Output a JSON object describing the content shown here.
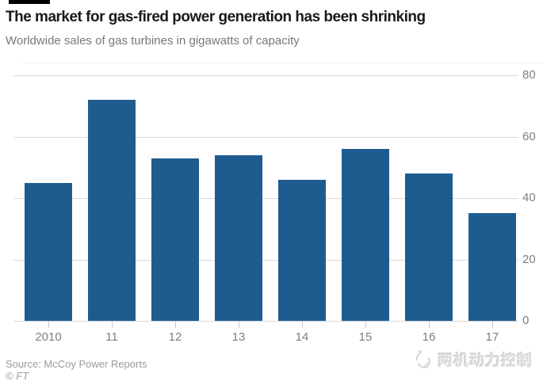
{
  "chart_data": {
    "type": "bar",
    "title": "The market for gas-fired power generation has been shrinking",
    "subtitle": "Worldwide sales of gas turbines in gigawatts of capacity",
    "categories": [
      "2010",
      "11",
      "12",
      "13",
      "14",
      "15",
      "16",
      "17"
    ],
    "values": [
      45,
      72,
      53,
      54,
      46,
      56,
      48,
      35
    ],
    "xlabel": "",
    "ylabel": "gigawatts of capacity",
    "ylim": [
      0,
      80
    ],
    "yticks": [
      0,
      20,
      40,
      60,
      80
    ],
    "ytick_side": "right",
    "grid": true,
    "legend": false
  },
  "footer": {
    "source": "Source: McCoy Power Reports",
    "copyright": "© FT",
    "watermark_text": "两机动力控制"
  },
  "colors": {
    "accent": "#000000",
    "bar": "#1e5c90",
    "gridline": "#d9d9d9",
    "tick": "#c9c9c9",
    "axis_label": "#7f7f7f",
    "title": "#1a1a1a",
    "subtitle": "#787878",
    "source": "#9b9b9b",
    "watermark": "#dfdcda",
    "top_border": "#f0eeec"
  }
}
